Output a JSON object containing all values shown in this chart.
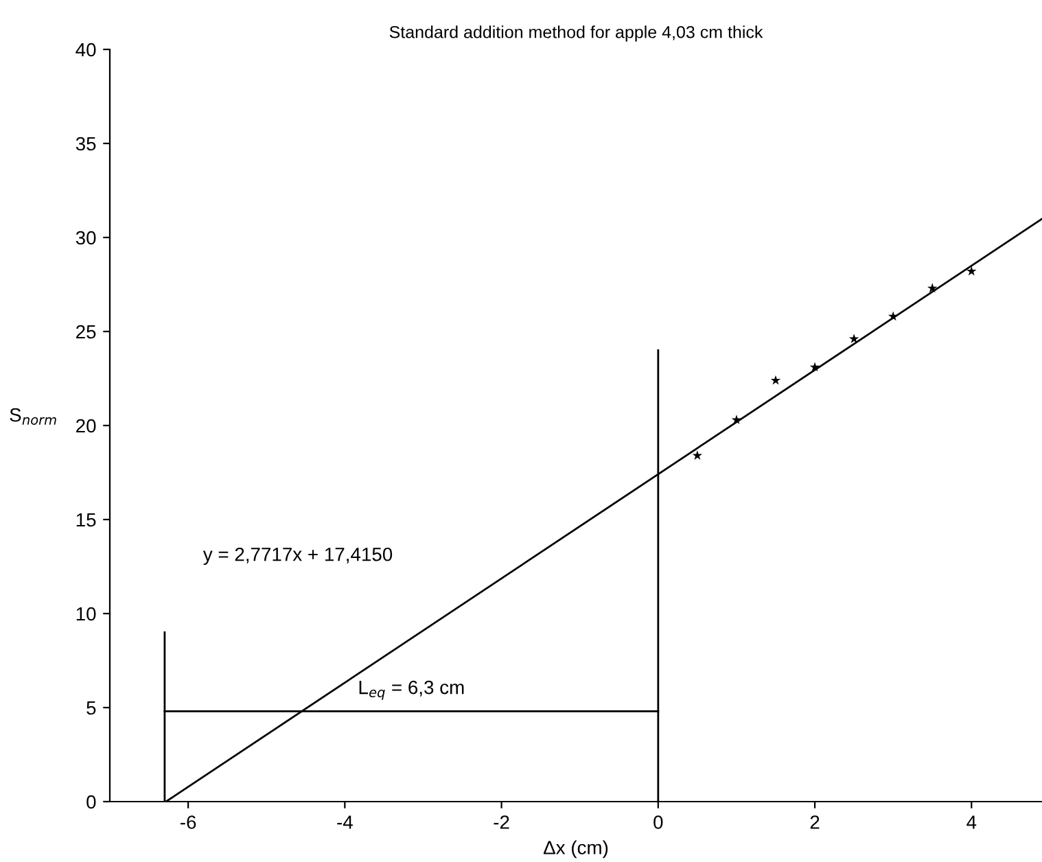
{
  "chart_data": {
    "type": "scatter",
    "title": "Standard addition method for apple 4,03 cm thick",
    "xlabel": "Δx (cm)",
    "ylabel": "S$_{norm}$",
    "xlim": [
      -7,
      4.9
    ],
    "ylim": [
      0,
      40
    ],
    "xticks": [
      -6,
      -4,
      -2,
      0,
      2,
      4
    ],
    "yticks": [
      0,
      5,
      10,
      15,
      20,
      25,
      30,
      35,
      40
    ],
    "grid": false,
    "marker": "none",
    "series": [
      {
        "marker": "star",
        "color": "#000000",
        "x": [
          0.5,
          1,
          1.5,
          2,
          2.5,
          3,
          3.5,
          4
        ],
        "values": [
          18.4,
          20.3,
          22.4,
          23.1,
          24.6,
          25.8,
          27.3,
          28.2
        ]
      },
      {
        "type": "line",
        "color": "#000000",
        "x": [
          -6.283,
          4.9
        ],
        "values": [
          0,
          30.99
        ]
      },
      {
        "type": "line",
        "color": "#000000",
        "x": [
          -6.3,
          -6.3
        ],
        "values": [
          0,
          9
        ]
      },
      {
        "type": "line",
        "color": "#000000",
        "x": [
          0,
          0
        ],
        "values": [
          0,
          24
        ]
      },
      {
        "type": "line",
        "color": "#000000",
        "x": [
          -6.3,
          0
        ],
        "values": [
          4.8,
          4.8
        ]
      }
    ],
    "annotations": [
      "y = 2,7717x + 17,4150",
      {
        "text": "L$_{eq}$ = 6,3 cm",
        "x": -3.15,
        "y": 4.8
      }
    ]
  }
}
